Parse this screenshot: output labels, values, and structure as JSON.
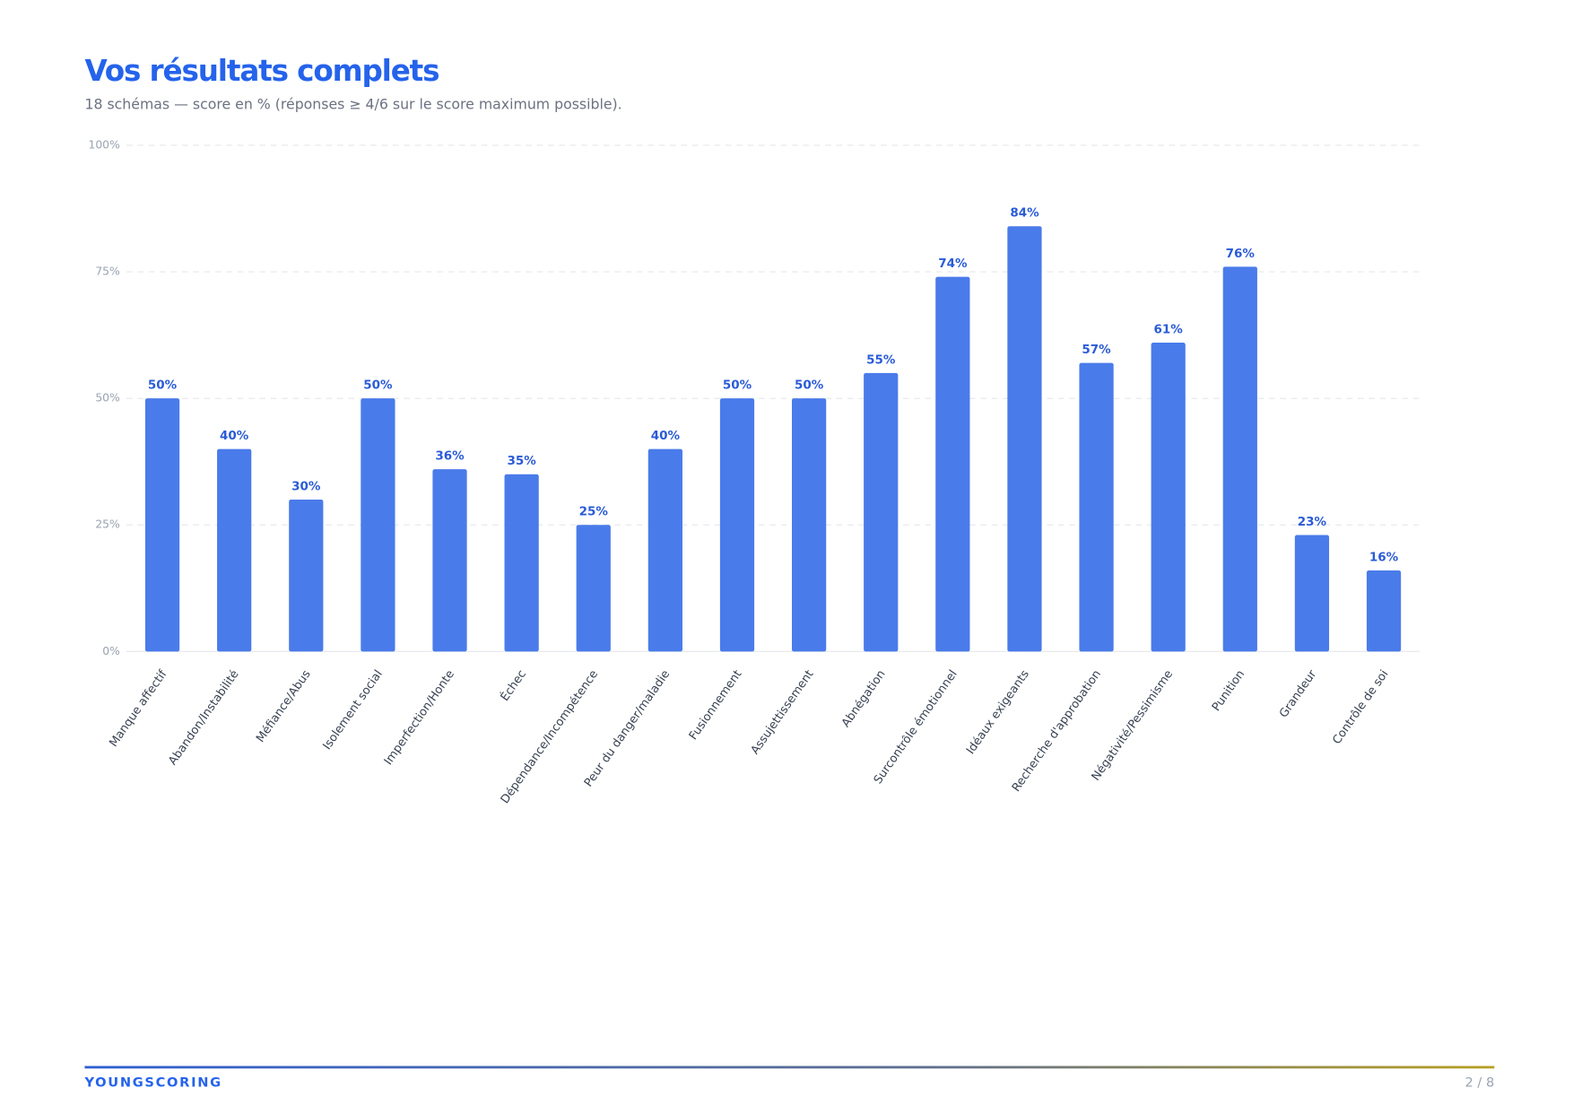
{
  "chart_data": {
    "type": "bar",
    "title": "Vos résultats complets",
    "subtitle": "18 schémas — score en % (réponses ≥ 4/6 sur le score maximum possible).",
    "categories": [
      "Manque affectif",
      "Abandon/Instabilité",
      "Méfiance/Abus",
      "Isolement social",
      "Imperfection/Honte",
      "Échec",
      "Dépendance/Incompétence",
      "Peur du danger/maladie",
      "Fusionnement",
      "Assujettissement",
      "Abnégation",
      "Surcontrôle émotionnel",
      "Idéaux exigeants",
      "Recherche d'approbation",
      "Négativité/Pessimisme",
      "Punition",
      "Grandeur",
      "Contrôle de soi"
    ],
    "values": [
      50,
      40,
      30,
      50,
      36,
      35,
      25,
      40,
      50,
      50,
      55,
      74,
      84,
      57,
      61,
      76,
      23,
      16
    ],
    "value_labels": [
      "50%",
      "40%",
      "30%",
      "50%",
      "36%",
      "35%",
      "25%",
      "40%",
      "50%",
      "50%",
      "55%",
      "74%",
      "84%",
      "57%",
      "61%",
      "76%",
      "23%",
      "16%"
    ],
    "color": "#4a7bea",
    "ylim": [
      0,
      100
    ],
    "yticks": [
      {
        "value": 0,
        "label": "0%"
      },
      {
        "value": 25,
        "label": "25%"
      },
      {
        "value": 50,
        "label": "50%"
      },
      {
        "value": 75,
        "label": "75%"
      },
      {
        "value": 100,
        "label": "100%"
      }
    ],
    "grid": true
  },
  "footer": {
    "brand": "YOUNGSCORING",
    "page": "2 / 8"
  }
}
